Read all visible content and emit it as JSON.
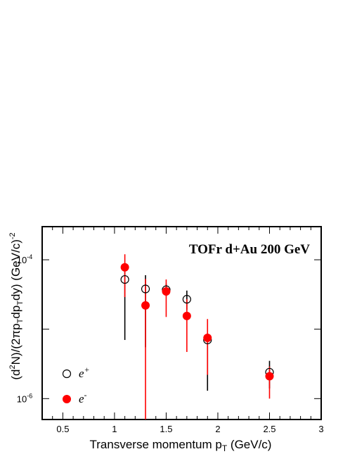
{
  "chart_data": {
    "type": "scatter",
    "title": "TOFr d+Au 200 GeV",
    "xlabel": "Transverse momentum p",
    "xlabel_sub": "T",
    "xlabel_unit": " (GeV/c)",
    "ylabel_text": "(d²N)/(2πp_T dp_T dy) (GeV/c)^-2",
    "xlim": [
      0.3,
      3.0
    ],
    "ylim": [
      5e-07,
      0.0003
    ],
    "yscale": "log",
    "grid": false,
    "legend_position": "bottom-left",
    "xticks": [
      {
        "value": 0.5,
        "label": "0.5"
      },
      {
        "value": 1.0,
        "label": "1"
      },
      {
        "value": 1.5,
        "label": "1.5"
      },
      {
        "value": 2.0,
        "label": "2"
      },
      {
        "value": 2.5,
        "label": "2.5"
      },
      {
        "value": 3.0,
        "label": "3"
      }
    ],
    "yticks": [
      {
        "value": 1e-06,
        "base": "10",
        "exp": "-6"
      },
      {
        "value": 0.0001,
        "base": "10",
        "exp": "-4"
      }
    ],
    "series": [
      {
        "name": "e+",
        "marker": "open-circle",
        "color": "#000000",
        "errorbar_color": "#000000",
        "points": [
          {
            "x": 1.1,
            "y": 5.2e-05,
            "ylow": 7e-06,
            "yhigh": 8.6e-05
          },
          {
            "x": 1.3,
            "y": 3.8e-05,
            "ylow": 5.5e-06,
            "yhigh": 6e-05
          },
          {
            "x": 1.5,
            "y": 3.7e-05,
            "ylow": 3e-05,
            "yhigh": 4.5e-05
          },
          {
            "x": 1.7,
            "y": 2.7e-05,
            "ylow": 1.9e-05,
            "yhigh": 3.6e-05
          },
          {
            "x": 1.9,
            "y": 7e-06,
            "ylow": 1.3e-06,
            "yhigh": 8.7e-06
          },
          {
            "x": 2.5,
            "y": 2.4e-06,
            "ylow": 1.4e-06,
            "yhigh": 3.5e-06
          }
        ]
      },
      {
        "name": "e-",
        "marker": "filled-circle",
        "color": "#ff0000",
        "errorbar_color": "#ff0000",
        "points": [
          {
            "x": 1.1,
            "y": 7.8e-05,
            "ylow": 2.9e-05,
            "yhigh": 0.00012
          },
          {
            "x": 1.3,
            "y": 2.2e-05,
            "ylow": 5e-07,
            "yhigh": 5.3e-05
          },
          {
            "x": 1.5,
            "y": 3.5e-05,
            "ylow": 1.5e-05,
            "yhigh": 5.2e-05
          },
          {
            "x": 1.7,
            "y": 1.55e-05,
            "ylow": 4.7e-06,
            "yhigh": 2.7e-05
          },
          {
            "x": 1.9,
            "y": 7.5e-06,
            "ylow": 2.2e-06,
            "yhigh": 1.4e-05
          },
          {
            "x": 2.5,
            "y": 2.1e-06,
            "ylow": 1e-06,
            "yhigh": 2.9e-06
          }
        ]
      }
    ],
    "legend": [
      {
        "label": "e",
        "sup": "+",
        "marker": "open-circle"
      },
      {
        "label": "e",
        "sup": "-",
        "marker": "filled-circle"
      }
    ]
  }
}
